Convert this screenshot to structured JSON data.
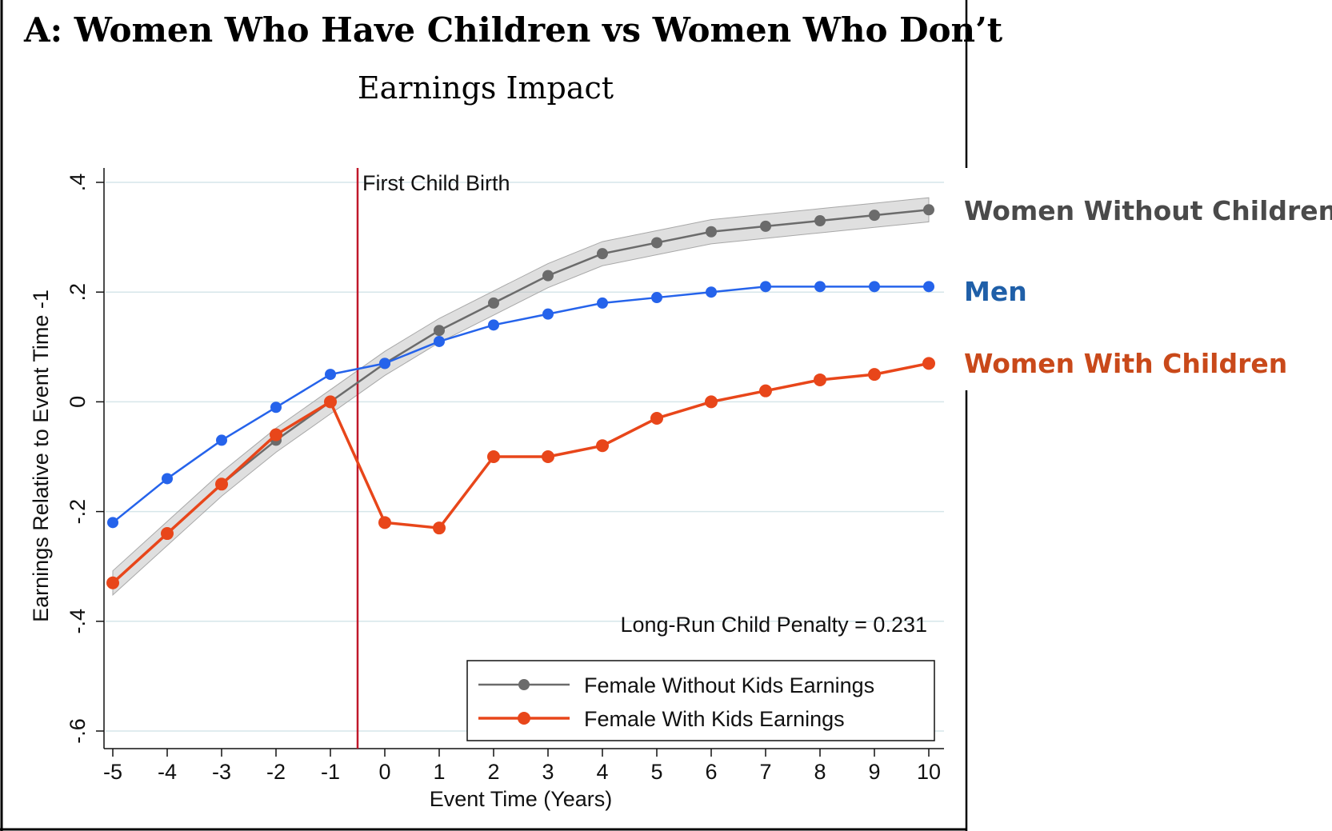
{
  "title": "A: Women Who Have Children vs Women Who Don’t",
  "subtitle": "Earnings Impact",
  "colors": {
    "gray": "#6b6b6b",
    "blue": "#2563eb",
    "red": "#e8461a",
    "vline": "#c0182a",
    "label_gray": "#4a4a4a",
    "label_blue": "#1f5fa8",
    "label_red": "#c9491a"
  },
  "chart_data": {
    "type": "line",
    "x": [
      -5,
      -4,
      -3,
      -2,
      -1,
      0,
      1,
      2,
      3,
      4,
      5,
      6,
      7,
      8,
      9,
      10
    ],
    "xlabel": "Event Time (Years)",
    "ylabel": "Earnings Relative to Event Time -1",
    "xlim": [
      -5,
      10
    ],
    "ylim": [
      -0.6,
      0.4
    ],
    "x_ticks": [
      -5,
      -4,
      -3,
      -2,
      -1,
      0,
      1,
      2,
      3,
      4,
      5,
      6,
      7,
      8,
      9,
      10
    ],
    "x_tick_labels": [
      "-5",
      "-4",
      "-3",
      "-2",
      "-1",
      "0",
      "1",
      "2",
      "3",
      "4",
      "5",
      "6",
      "7",
      "8",
      "9",
      "10"
    ],
    "y_ticks": [
      -0.6,
      -0.4,
      -0.2,
      0,
      0.2,
      0.4
    ],
    "y_tick_labels": [
      "-.6",
      "-.4",
      "-.2",
      "0",
      ".2",
      ".4"
    ],
    "grid": true,
    "event_line": {
      "x": -0.5,
      "label": "First Child Birth"
    },
    "annotation": "Long-Run Child Penalty = 0.231",
    "legend_position": "bottom-right",
    "series": [
      {
        "name": "Female Without Kids Earnings",
        "end_label": "Women Without Children",
        "color": "gray",
        "confidence_band": true,
        "values": [
          -0.33,
          -0.24,
          -0.15,
          -0.07,
          0.0,
          0.07,
          0.13,
          0.18,
          0.23,
          0.27,
          0.29,
          0.31,
          0.32,
          0.33,
          0.34,
          0.35
        ]
      },
      {
        "name": "",
        "end_label": "Men",
        "color": "blue",
        "confidence_band": false,
        "values": [
          -0.22,
          -0.14,
          -0.07,
          -0.01,
          0.05,
          0.07,
          0.11,
          0.14,
          0.16,
          0.18,
          0.19,
          0.2,
          0.21,
          0.21,
          0.21,
          0.21
        ]
      },
      {
        "name": "Female With Kids Earnings",
        "end_label": "Women With Children",
        "color": "red",
        "confidence_band": false,
        "values": [
          -0.33,
          -0.24,
          -0.15,
          -0.06,
          0.0,
          -0.22,
          -0.23,
          -0.1,
          -0.1,
          -0.08,
          -0.03,
          0.0,
          0.02,
          0.04,
          0.05,
          0.07
        ]
      }
    ]
  }
}
